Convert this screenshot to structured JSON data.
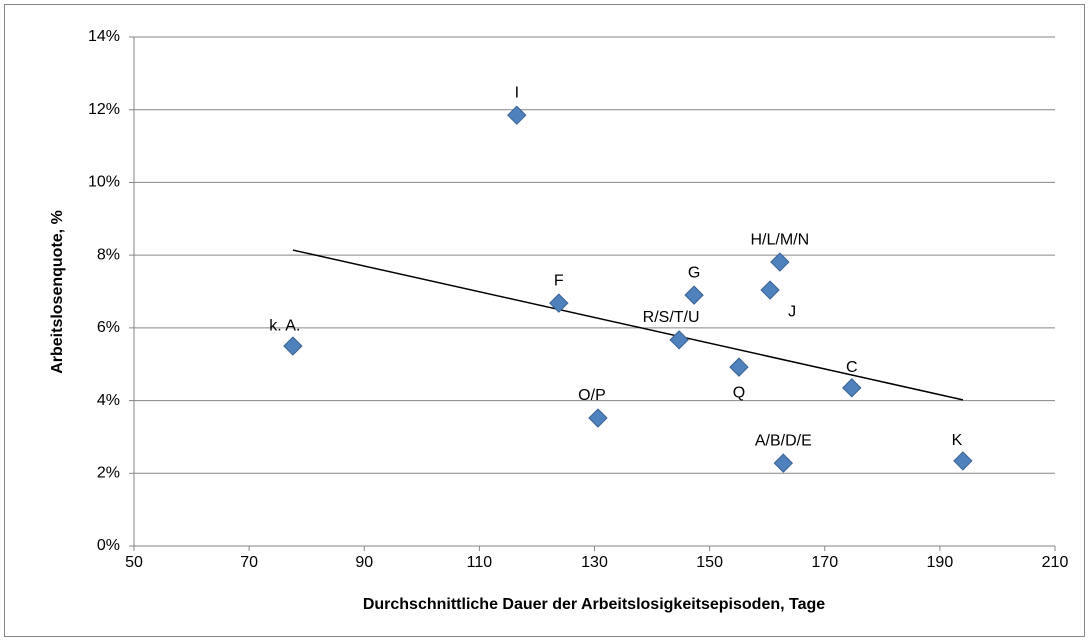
{
  "chart_data": {
    "type": "scatter",
    "xlabel": "Durchschnittliche Dauer der Arbeitslosigkeitsepisoden, Tage",
    "ylabel": "Arbeitslosenquote, %",
    "x": [
      77.6,
      116.5,
      123.8,
      130.6,
      144.7,
      147.3,
      155.1,
      160.5,
      162.2,
      162.8,
      174.7,
      194.0
    ],
    "values": [
      5.5,
      11.85,
      6.68,
      3.52,
      5.67,
      6.9,
      4.92,
      7.04,
      7.81,
      2.28,
      4.35,
      2.34
    ],
    "labels": [
      "k. A.",
      "I",
      "F",
      "O/P",
      "R/S/T/U",
      "G",
      "Q",
      "J",
      "H/L/M/N",
      "A/B/D/E",
      "C",
      "K"
    ],
    "color": "#4f81bd",
    "trendline": {
      "x": [
        77.6,
        194
      ],
      "values": [
        8.14,
        4.02
      ],
      "color": "#000000"
    },
    "xlim": [
      50,
      210
    ],
    "xticks": [
      50,
      70,
      90,
      110,
      130,
      150,
      170,
      190,
      210
    ],
    "ylim": [
      0,
      14
    ],
    "yticks": [
      {
        "value": 0,
        "label": "0%"
      },
      {
        "value": 2,
        "label": "2%"
      },
      {
        "value": 4,
        "label": "4%"
      },
      {
        "value": 6,
        "label": "6%"
      },
      {
        "value": 8,
        "label": "8%"
      },
      {
        "value": 10,
        "label": "10%"
      },
      {
        "value": 12,
        "label": "12%"
      },
      {
        "value": 14,
        "label": "14%"
      }
    ],
    "grid": true
  }
}
